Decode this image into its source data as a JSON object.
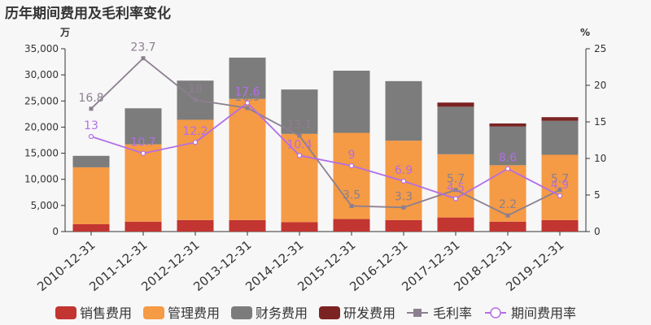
{
  "title": "历年期间费用及毛利率变化",
  "chart_data": {
    "type": "bar",
    "title": "历年期间费用及毛利率变化",
    "left_unit": "万",
    "right_unit": "%",
    "categories": [
      "2010-12-31",
      "2011-12-31",
      "2012-12-31",
      "2013-12-31",
      "2014-12-31",
      "2015-12-31",
      "2016-12-31",
      "2017-12-31",
      "2018-12-31",
      "2019-12-31"
    ],
    "ylim_left": [
      0,
      35000
    ],
    "yticks_left": [
      "0",
      "5,000",
      "10,000",
      "15,000",
      "20,000",
      "25,000",
      "30,000",
      "35,000"
    ],
    "ylim_right": [
      0,
      25
    ],
    "yticks_right": [
      "0",
      "5",
      "10",
      "15",
      "20",
      "25"
    ],
    "bar_series": [
      {
        "name": "销售费用",
        "color": "#c23531",
        "values": [
          1400,
          1900,
          2200,
          2200,
          1800,
          2400,
          2200,
          2700,
          1900,
          2200
        ]
      },
      {
        "name": "管理费用",
        "color": "#f59a45",
        "values": [
          10900,
          14800,
          19200,
          23200,
          16900,
          16500,
          15200,
          12100,
          10800,
          12500
        ]
      },
      {
        "name": "财务费用",
        "color": "#7c7c7c",
        "values": [
          2200,
          6900,
          7500,
          7900,
          8500,
          11900,
          11400,
          9100,
          7400,
          6500
        ]
      },
      {
        "name": "研发费用",
        "color": "#7b2323",
        "values": [
          0,
          0,
          0,
          0,
          0,
          0,
          0,
          800,
          600,
          700
        ]
      }
    ],
    "line_series": [
      {
        "name": "毛利率",
        "color": "#8c7f8f",
        "marker": "square",
        "values": [
          16.8,
          23.7,
          18,
          16.9,
          13.1,
          3.5,
          3.3,
          5.7,
          2.2,
          5.7
        ],
        "labels": [
          "16.8",
          "23.7",
          "18",
          "16.9",
          "13.1",
          "3.5",
          "3.3",
          "5.7",
          "2.2",
          "5.7"
        ]
      },
      {
        "name": "期间费用率",
        "color": "#b36ee6",
        "marker": "circle",
        "values": [
          13,
          10.7,
          12.2,
          17.6,
          10.4,
          9,
          6.9,
          4.5,
          8.6,
          4.9
        ],
        "labels": [
          "13",
          "10.7",
          "12.2",
          "17.6",
          "10.4",
          "9",
          "6.9",
          "4.5",
          "8.6",
          "4.9"
        ]
      }
    ],
    "grid": false,
    "legend_position": "bottom"
  }
}
